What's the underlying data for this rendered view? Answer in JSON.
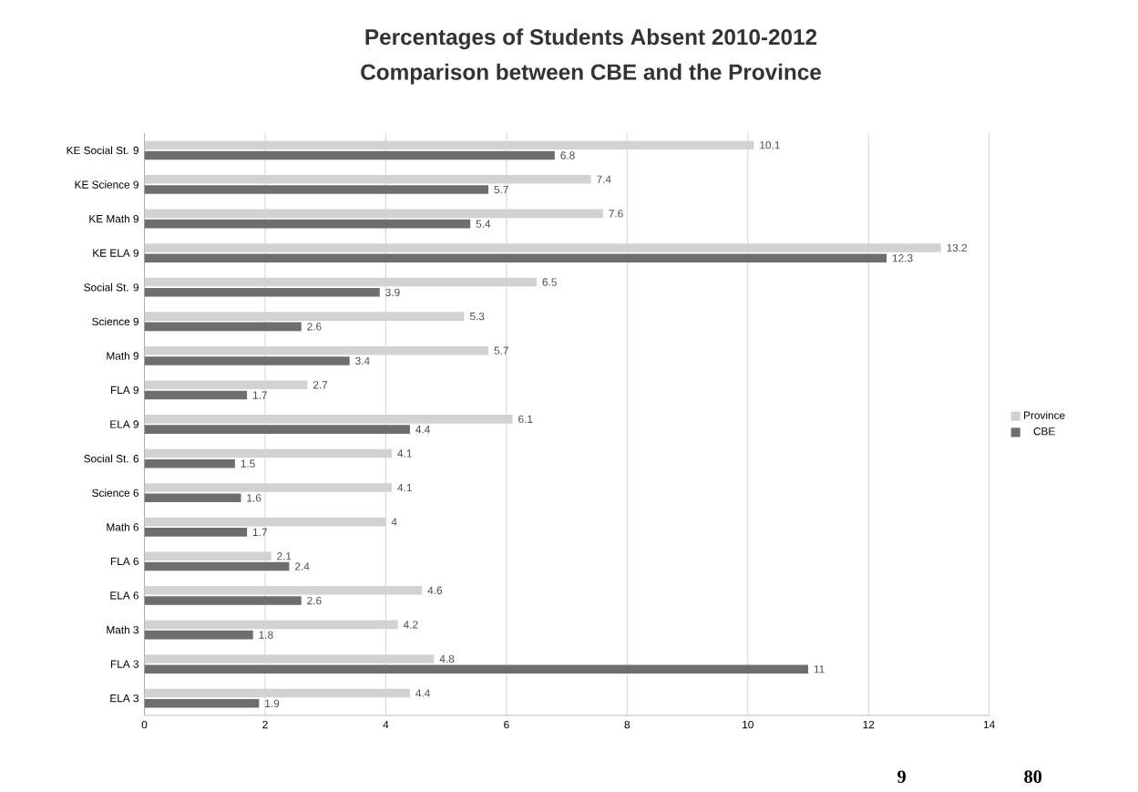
{
  "chart_data": {
    "type": "bar",
    "orientation": "horizontal",
    "title": "Percentages of Students Absent 2010-2012",
    "subtitle": "Comparison between CBE and the Province",
    "categories": [
      "KE Social St. 9",
      "KE Science 9",
      "KE Math 9",
      "KE ELA 9",
      "Social St. 9",
      "Science 9",
      "Math 9",
      "FLA 9",
      "ELA 9",
      "Social St. 6",
      "Science 6",
      "Math 6",
      "FLA 6",
      "ELA 6",
      "Math 3",
      "FLA 3",
      "ELA 3"
    ],
    "series": [
      {
        "name": "Province",
        "color": "#d2d2d2",
        "values": [
          10.1,
          7.4,
          7.6,
          13.2,
          6.5,
          5.3,
          5.7,
          2.7,
          6.1,
          4.1,
          4.1,
          4,
          2.1,
          4.6,
          4.2,
          4.8,
          4.4
        ]
      },
      {
        "name": "CBE",
        "color": "#6e6e6e",
        "values": [
          6.8,
          5.7,
          5.4,
          12.3,
          3.9,
          2.6,
          3.4,
          1.7,
          4.4,
          1.5,
          1.6,
          1.7,
          2.4,
          2.6,
          1.8,
          11,
          1.9
        ]
      }
    ],
    "xlim": [
      0,
      14
    ],
    "xticks": [
      0,
      2,
      4,
      6,
      8,
      10,
      12,
      14
    ],
    "grid": "x",
    "legend": "right",
    "data_labels": true,
    "annotations": [
      "9",
      "80"
    ]
  }
}
